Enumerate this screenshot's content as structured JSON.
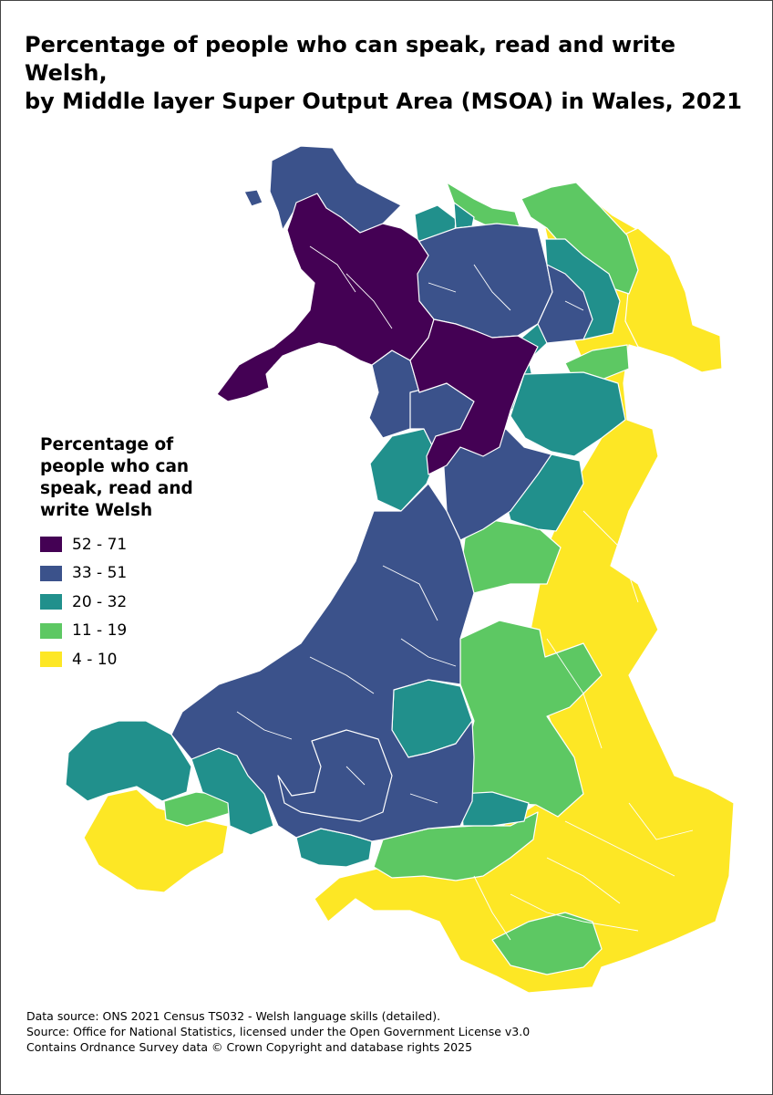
{
  "title_line1": "Percentage of people who can speak, read and write Welsh,",
  "title_line2": "by Middle layer Super Output Area (MSOA) in Wales, 2021",
  "legend": {
    "title": "Percentage of people who can speak, read and write Welsh",
    "classes": [
      {
        "label": "52 - 71",
        "color": "#440154"
      },
      {
        "label": "33 - 51",
        "color": "#3b528b"
      },
      {
        "label": "20 - 32",
        "color": "#21908c"
      },
      {
        "label": "11 - 19",
        "color": "#5dc863"
      },
      {
        "label": "4 - 10",
        "color": "#fde725"
      }
    ]
  },
  "sources": {
    "line1": "Data source: ONS 2021 Census TS032 - Welsh language skills (detailed).",
    "line2": "Source: Office for National Statistics, licensed under the Open Government License v3.0",
    "line3": "Contains Ordnance Survey data © Crown Copyright and database rights 2025"
  }
}
